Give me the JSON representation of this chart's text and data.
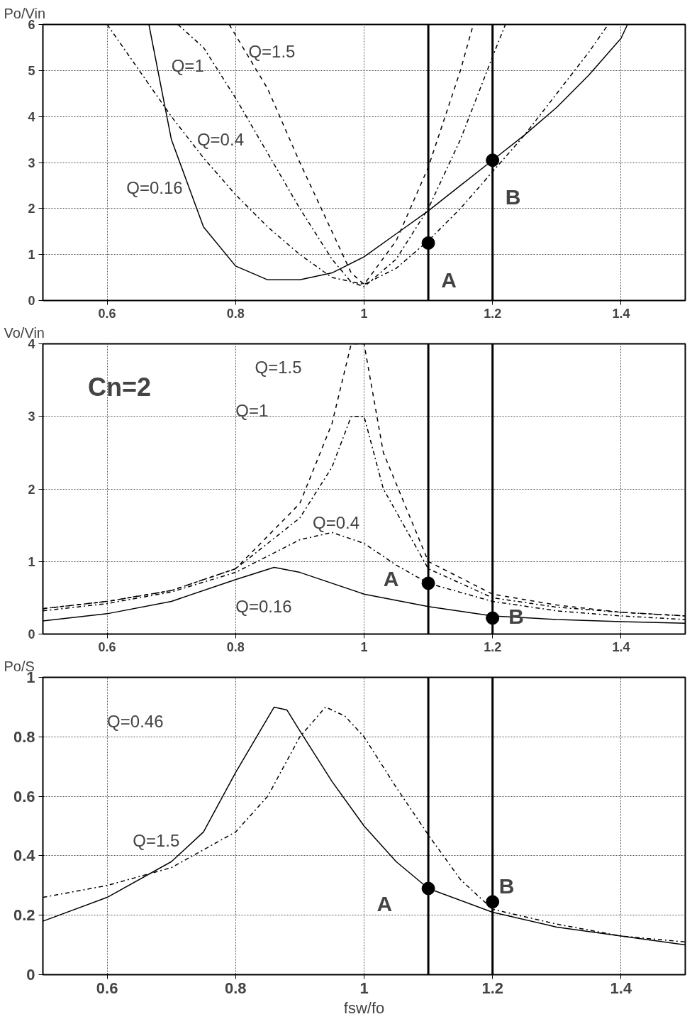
{
  "chart_data": [
    {
      "type": "line",
      "ylabel": "Po/Vin",
      "xlim": [
        0.5,
        1.5
      ],
      "ylim": [
        0,
        6
      ],
      "xticks": [
        0.6,
        0.8,
        1,
        1.2,
        1.4
      ],
      "yticks": [
        0,
        1,
        2,
        3,
        4,
        5,
        6
      ],
      "grid": true,
      "series": [
        {
          "color": "#000000",
          "line_style": "solid",
          "x": [
            0.665,
            0.7,
            0.75,
            0.8,
            0.85,
            0.9,
            0.95,
            1.0,
            1.05,
            1.1,
            1.15,
            1.2,
            1.25,
            1.3,
            1.35,
            1.4,
            1.41
          ],
          "values": [
            6,
            3.5,
            1.6,
            0.75,
            0.45,
            0.45,
            0.6,
            0.95,
            1.45,
            1.95,
            2.5,
            3.05,
            3.6,
            4.2,
            4.9,
            5.7,
            6
          ]
        },
        {
          "color": "#000000",
          "line_style": "dotted",
          "x": [
            0.6,
            0.65,
            0.7,
            0.75,
            0.8,
            0.85,
            0.9,
            0.95,
            1.0,
            1.05,
            1.1,
            1.15,
            1.2,
            1.25,
            1.3,
            1.35,
            1.38
          ],
          "values": [
            6,
            5.0,
            4.0,
            3.1,
            2.3,
            1.6,
            1.0,
            0.5,
            0.35,
            0.7,
            1.3,
            2.0,
            2.8,
            3.6,
            4.5,
            5.4,
            6
          ]
        },
        {
          "color": "#000000",
          "line_style": "dotted",
          "x": [
            0.71,
            0.75,
            0.8,
            0.85,
            0.9,
            0.95,
            0.98,
            1.0,
            1.05,
            1.1,
            1.15,
            1.2,
            1.22
          ],
          "values": [
            6,
            5.5,
            4.4,
            3.2,
            2.0,
            0.9,
            0.4,
            0.3,
            0.9,
            2.0,
            3.5,
            5.3,
            6
          ]
        },
        {
          "color": "#000000",
          "line_style": "dashed",
          "x": [
            0.79,
            0.85,
            0.9,
            0.95,
            0.98,
            1.0,
            1.05,
            1.1,
            1.15,
            1.17
          ],
          "values": [
            6,
            4.6,
            3.0,
            1.5,
            0.6,
            0.35,
            1.3,
            2.9,
            5.0,
            6
          ]
        },
        {
          "type": "scatter",
          "marker": "circle",
          "color": "#000000",
          "x": [
            1.1,
            1.2
          ],
          "values": [
            1.25,
            3.05
          ]
        }
      ],
      "ref_lines": [
        {
          "axis": "x",
          "value": 1.1
        },
        {
          "axis": "x",
          "value": 1.2
        }
      ],
      "annotations": [
        "Q=0.16",
        "Q=0.4",
        "Q=1",
        "Q=1.5",
        "A",
        "B"
      ]
    },
    {
      "type": "line",
      "ylabel": "Vo/Vin",
      "xlim": [
        0.5,
        1.5
      ],
      "ylim": [
        0,
        4
      ],
      "xticks": [
        0.6,
        0.8,
        1,
        1.2,
        1.4
      ],
      "yticks": [
        0,
        1,
        2,
        3,
        4
      ],
      "grid": true,
      "series": [
        {
          "color": "#000000",
          "line_style": "solid",
          "x": [
            0.5,
            0.6,
            0.7,
            0.8,
            0.86,
            0.9,
            1.0,
            1.1,
            1.2,
            1.3,
            1.4,
            1.5
          ],
          "values": [
            0.18,
            0.28,
            0.45,
            0.75,
            0.92,
            0.85,
            0.55,
            0.38,
            0.25,
            0.2,
            0.17,
            0.15
          ]
        },
        {
          "color": "#000000",
          "line_style": "dotted",
          "x": [
            0.5,
            0.6,
            0.7,
            0.8,
            0.9,
            0.95,
            1.0,
            1.05,
            1.1,
            1.2,
            1.3,
            1.4,
            1.5
          ],
          "values": [
            0.32,
            0.42,
            0.58,
            0.85,
            1.3,
            1.4,
            1.25,
            0.95,
            0.7,
            0.45,
            0.32,
            0.25,
            0.2
          ]
        },
        {
          "color": "#000000",
          "line_style": "dotted",
          "x": [
            0.5,
            0.6,
            0.7,
            0.8,
            0.9,
            0.95,
            0.98,
            1.0,
            1.03,
            1.1,
            1.2,
            1.3,
            1.4,
            1.5
          ],
          "values": [
            0.35,
            0.45,
            0.6,
            0.9,
            1.6,
            2.3,
            3.0,
            3.0,
            2.0,
            0.9,
            0.5,
            0.37,
            0.3,
            0.25
          ]
        },
        {
          "color": "#000000",
          "line_style": "dashed",
          "x": [
            0.5,
            0.6,
            0.7,
            0.8,
            0.9,
            0.95,
            0.98,
            1.0,
            1.03,
            1.1,
            1.2,
            1.3,
            1.4,
            1.5
          ],
          "values": [
            0.35,
            0.45,
            0.6,
            0.9,
            1.8,
            2.9,
            4.0,
            4.0,
            2.5,
            1.0,
            0.55,
            0.4,
            0.3,
            0.25
          ]
        },
        {
          "type": "scatter",
          "marker": "circle",
          "color": "#000000",
          "x": [
            1.1,
            1.2
          ],
          "values": [
            0.7,
            0.22
          ]
        }
      ],
      "ref_lines": [
        {
          "axis": "x",
          "value": 1.1
        },
        {
          "axis": "x",
          "value": 1.2
        }
      ],
      "annotations": [
        "Cn=2",
        "Q=1.5",
        "Q=1",
        "Q=0.4",
        "Q=0.16",
        "A",
        "B"
      ]
    },
    {
      "type": "line",
      "ylabel": "Po/S",
      "xlabel": "fsw/fo",
      "xlim": [
        0.5,
        1.5
      ],
      "ylim": [
        0,
        1
      ],
      "xticks": [
        0.6,
        0.8,
        1,
        1.2,
        1.4
      ],
      "yticks": [
        0,
        0.2,
        0.4,
        0.6,
        0.8,
        1
      ],
      "grid": true,
      "series": [
        {
          "color": "#000000",
          "line_style": "solid",
          "x": [
            0.5,
            0.6,
            0.7,
            0.75,
            0.8,
            0.86,
            0.88,
            0.9,
            0.95,
            1.0,
            1.05,
            1.1,
            1.2,
            1.3,
            1.4,
            1.5
          ],
          "values": [
            0.18,
            0.26,
            0.38,
            0.48,
            0.68,
            0.9,
            0.89,
            0.82,
            0.65,
            0.5,
            0.38,
            0.29,
            0.21,
            0.16,
            0.13,
            0.1
          ]
        },
        {
          "color": "#000000",
          "line_style": "dotted",
          "x": [
            0.5,
            0.6,
            0.7,
            0.8,
            0.85,
            0.9,
            0.94,
            0.97,
            1.0,
            1.05,
            1.1,
            1.15,
            1.2,
            1.3,
            1.4,
            1.5
          ],
          "values": [
            0.26,
            0.3,
            0.36,
            0.48,
            0.6,
            0.8,
            0.9,
            0.87,
            0.8,
            0.63,
            0.47,
            0.32,
            0.22,
            0.17,
            0.13,
            0.11
          ]
        },
        {
          "type": "scatter",
          "marker": "circle",
          "color": "#000000",
          "x": [
            1.1,
            1.2
          ],
          "values": [
            0.29,
            0.245
          ]
        }
      ],
      "ref_lines": [
        {
          "axis": "x",
          "value": 1.1
        },
        {
          "axis": "x",
          "value": 1.2
        }
      ],
      "annotations": [
        "Q=0.46",
        "Q=1.5",
        "A",
        "B"
      ]
    }
  ]
}
